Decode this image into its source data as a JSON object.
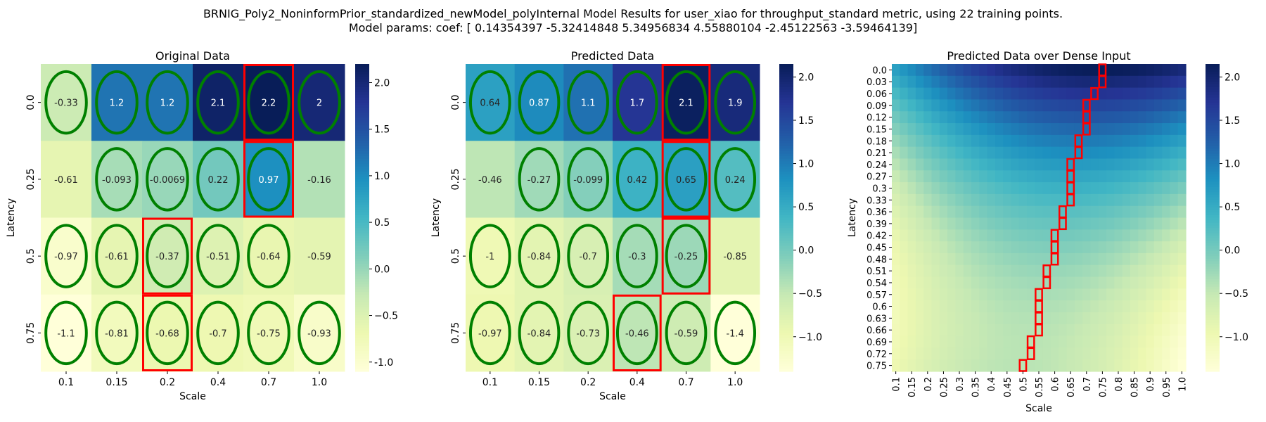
{
  "figure": {
    "title_line1": "BRNIG_Poly2_NoninformPrior_standardized_newModel_polyInternal Model Results for user_xiao for throughput_standard metric, using 22 training points.",
    "title_line2": "Model params: coef: [ 0.14354397 -5.32414848  5.34956834  4.55880104 -2.45122563 -3.59464139]"
  },
  "colormap": "YlGnBu",
  "highlight_colors": {
    "ellipse": "#008000",
    "box": "#ff0000"
  },
  "chart_data": [
    {
      "type": "heatmap",
      "title": "Original Data",
      "xlabel": "Scale",
      "ylabel": "Latency",
      "x_categories": [
        "0.1",
        "0.15",
        "0.2",
        "0.4",
        "0.7",
        "1.0"
      ],
      "y_categories": [
        "0.0",
        "0.25",
        "0.5",
        "0.75"
      ],
      "values": [
        [
          -0.33,
          1.2,
          1.2,
          2.1,
          2.2,
          2
        ],
        [
          -0.61,
          -0.093,
          -0.0069,
          0.22,
          0.97,
          -0.16
        ],
        [
          -0.97,
          -0.61,
          -0.37,
          -0.51,
          -0.64,
          -0.59
        ],
        [
          -1.1,
          -0.81,
          -0.68,
          -0.7,
          -0.75,
          -0.93
        ]
      ],
      "annotations": [
        [
          "-0.33",
          "1.2",
          "1.2",
          "2.1",
          "2.2",
          "2"
        ],
        [
          "-0.61",
          "-0.093",
          "-0.0069",
          "0.22",
          "0.97",
          "-0.16"
        ],
        [
          "-0.97",
          "-0.61",
          "-0.37",
          "-0.51",
          "-0.64",
          "-0.59"
        ],
        [
          "-1.1",
          "-0.81",
          "-0.68",
          "-0.7",
          "-0.75",
          "-0.93"
        ]
      ],
      "ellipse_cells": [
        [
          0,
          0
        ],
        [
          0,
          1
        ],
        [
          0,
          2
        ],
        [
          0,
          3
        ],
        [
          0,
          4
        ],
        [
          0,
          5
        ],
        [
          1,
          1
        ],
        [
          1,
          2
        ],
        [
          1,
          3
        ],
        [
          1,
          4
        ],
        [
          2,
          0
        ],
        [
          2,
          1
        ],
        [
          2,
          2
        ],
        [
          2,
          3
        ],
        [
          2,
          4
        ],
        [
          3,
          0
        ],
        [
          3,
          1
        ],
        [
          3,
          2
        ],
        [
          3,
          3
        ],
        [
          3,
          4
        ],
        [
          3,
          5
        ]
      ],
      "box_cells": [
        [
          0,
          4
        ],
        [
          1,
          4
        ],
        [
          2,
          2
        ],
        [
          3,
          2
        ]
      ],
      "colorbar": {
        "vmin": -1.1,
        "vmax": 2.2,
        "ticks": [
          "-1.0",
          "−0.5",
          "0.0",
          "0.5",
          "1.0",
          "1.5",
          "2.0"
        ],
        "tick_values": [
          -1.0,
          -0.5,
          0.0,
          0.5,
          1.0,
          1.5,
          2.0
        ]
      }
    },
    {
      "type": "heatmap",
      "title": "Predicted Data",
      "xlabel": "Scale",
      "ylabel": "Latency",
      "x_categories": [
        "0.1",
        "0.15",
        "0.2",
        "0.4",
        "0.7",
        "1.0"
      ],
      "y_categories": [
        "0.0",
        "0.25",
        "0.5",
        "0.75"
      ],
      "values": [
        [
          0.64,
          0.87,
          1.1,
          1.7,
          2.1,
          1.9
        ],
        [
          -0.46,
          -0.27,
          -0.099,
          0.42,
          0.65,
          0.24
        ],
        [
          -1,
          -0.84,
          -0.7,
          -0.3,
          -0.25,
          -0.85
        ],
        [
          -0.97,
          -0.84,
          -0.73,
          -0.46,
          -0.59,
          -1.4
        ]
      ],
      "annotations": [
        [
          "0.64",
          "0.87",
          "1.1",
          "1.7",
          "2.1",
          "1.9"
        ],
        [
          "-0.46",
          "-0.27",
          "-0.099",
          "0.42",
          "0.65",
          "0.24"
        ],
        [
          "-1",
          "-0.84",
          "-0.7",
          "-0.3",
          "-0.25",
          "-0.85"
        ],
        [
          "-0.97",
          "-0.84",
          "-0.73",
          "-0.46",
          "-0.59",
          "-1.4"
        ]
      ],
      "ellipse_cells": [
        [
          0,
          0
        ],
        [
          0,
          1
        ],
        [
          0,
          2
        ],
        [
          0,
          3
        ],
        [
          0,
          4
        ],
        [
          0,
          5
        ],
        [
          1,
          1
        ],
        [
          1,
          2
        ],
        [
          1,
          3
        ],
        [
          1,
          4
        ],
        [
          1,
          5
        ],
        [
          2,
          0
        ],
        [
          2,
          1
        ],
        [
          2,
          2
        ],
        [
          2,
          3
        ],
        [
          2,
          4
        ],
        [
          3,
          0
        ],
        [
          3,
          1
        ],
        [
          3,
          2
        ],
        [
          3,
          3
        ],
        [
          3,
          4
        ],
        [
          3,
          5
        ]
      ],
      "box_cells": [
        [
          0,
          4
        ],
        [
          1,
          4
        ],
        [
          2,
          4
        ],
        [
          3,
          3
        ]
      ],
      "colorbar": {
        "vmin": -1.4,
        "vmax": 2.15,
        "ticks": [
          "−1.0",
          "−0.5",
          "0.0",
          "0.5",
          "1.0",
          "1.5",
          "2.0"
        ],
        "tick_values": [
          -1.0,
          -0.5,
          0.0,
          0.5,
          1.0,
          1.5,
          2.0
        ]
      }
    },
    {
      "type": "heatmap",
      "title": "Predicted Data over Dense Input",
      "xlabel": "Scale",
      "ylabel": "Latency",
      "x_categories": [
        "0.1",
        "0.15",
        "0.2",
        "0.25",
        "0.3",
        "0.35",
        "0.4",
        "0.45",
        "0.5",
        "0.55",
        "0.6",
        "0.65",
        "0.7",
        "0.75",
        "0.8",
        "0.85",
        "0.9",
        "0.95",
        "1.0"
      ],
      "y_categories": [
        "0.0",
        "0.03",
        "0.06",
        "0.09",
        "0.12",
        "0.15",
        "0.18",
        "0.21",
        "0.24",
        "0.27",
        "0.3",
        "0.33",
        "0.36",
        "0.39",
        "0.42",
        "0.45",
        "0.48",
        "0.51",
        "0.54",
        "0.57",
        "0.6",
        "0.63",
        "0.66",
        "0.69",
        "0.72",
        "0.75"
      ],
      "grid_x_range": [
        0.1,
        1.0
      ],
      "grid_y_range": [
        0.0,
        0.75
      ],
      "grid_resolution": [
        37,
        26
      ],
      "coef": [
        0.14354397,
        -5.32414848,
        5.34956834,
        4.55880104,
        -2.45122563,
        -3.59464139
      ],
      "max_path_scale": [
        0.75,
        0.74,
        0.73,
        0.71,
        0.7,
        0.69,
        0.68,
        0.67,
        0.66,
        0.65,
        0.64,
        0.64,
        0.63,
        0.62,
        0.61,
        0.6,
        0.59,
        0.58,
        0.57,
        0.56,
        0.55,
        0.55,
        0.54,
        0.53,
        0.52,
        0.51
      ],
      "colorbar": {
        "vmin": -1.4,
        "vmax": 2.15,
        "ticks": [
          "−1.0",
          "−0.5",
          "0.0",
          "0.5",
          "1.0",
          "1.5",
          "2.0"
        ],
        "tick_values": [
          -1.0,
          -0.5,
          0.0,
          0.5,
          1.0,
          1.5,
          2.0
        ]
      }
    }
  ]
}
